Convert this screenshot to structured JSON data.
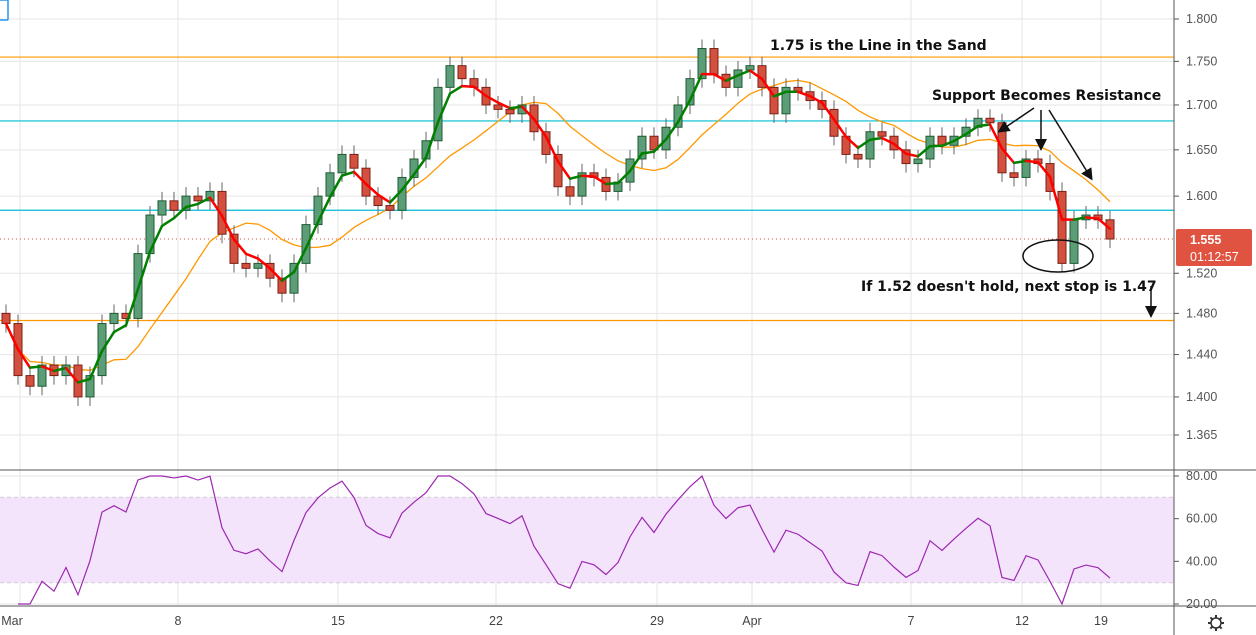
{
  "chart_data": [
    {
      "type": "candlestick",
      "scale": "log",
      "ylim": [
        1.345,
        1.815
      ],
      "y_ticks": [
        "1.800",
        "1.750",
        "1.700",
        "1.650",
        "1.600",
        "1.520",
        "1.480",
        "1.440",
        "1.400",
        "1.365"
      ],
      "x_ticks": [
        "Mar",
        "8",
        "15",
        "22",
        "29",
        "Apr",
        "7",
        "12",
        "19"
      ],
      "grid": true,
      "first_open": 1.48,
      "close": [
        1.47,
        1.42,
        1.41,
        1.43,
        1.42,
        1.43,
        1.4,
        1.42,
        1.47,
        1.48,
        1.475,
        1.54,
        1.58,
        1.595,
        1.585,
        1.6,
        1.595,
        1.605,
        1.56,
        1.53,
        1.525,
        1.53,
        1.515,
        1.5,
        1.53,
        1.57,
        1.6,
        1.625,
        1.645,
        1.63,
        1.6,
        1.59,
        1.585,
        1.62,
        1.64,
        1.66,
        1.72,
        1.745,
        1.73,
        1.72,
        1.7,
        1.695,
        1.69,
        1.7,
        1.67,
        1.645,
        1.61,
        1.6,
        1.625,
        1.62,
        1.605,
        1.615,
        1.64,
        1.665,
        1.65,
        1.675,
        1.7,
        1.73,
        1.765,
        1.735,
        1.72,
        1.74,
        1.745,
        1.72,
        1.69,
        1.72,
        1.715,
        1.705,
        1.695,
        1.665,
        1.645,
        1.64,
        1.67,
        1.665,
        1.65,
        1.635,
        1.64,
        1.665,
        1.655,
        1.665,
        1.675,
        1.685,
        1.68,
        1.625,
        1.62,
        1.64,
        1.635,
        1.605,
        1.53,
        1.575,
        1.58,
        1.575,
        1.555
      ],
      "horizontal_levels": [
        {
          "value": 1.755,
          "color": "#ff9800"
        },
        {
          "value": 1.682,
          "color": "#00bcd4"
        },
        {
          "value": 1.585,
          "color": "#00bcd4"
        },
        {
          "value": 1.473,
          "color": "#ff9800"
        }
      ],
      "last_price": {
        "value": "1.555",
        "countdown": "01:12:57",
        "color": "#df5340"
      },
      "colors": {
        "up": "#5b9d76",
        "down": "#d4503e",
        "fast_ma_up": "#008000",
        "fast_ma_down": "#ff0000",
        "slow_ma": "#ff9800"
      },
      "annotations": [
        {
          "text": "1.75 is the Line in the Sand"
        },
        {
          "text": "Support Becomes Resistance"
        },
        {
          "text": "If 1.52 doesn't hold, next stop is 1.47"
        }
      ]
    },
    {
      "type": "line",
      "indicator": "RSI",
      "ylim": [
        18,
        82
      ],
      "y_ticks": [
        "80.00",
        "60.00",
        "40.00",
        "20.00"
      ],
      "bands": [
        70,
        30
      ],
      "color": "#9c27b0",
      "band_fill": "#f3e4fc"
    }
  ],
  "toolbar": {
    "settings_icon": "gear-icon"
  }
}
